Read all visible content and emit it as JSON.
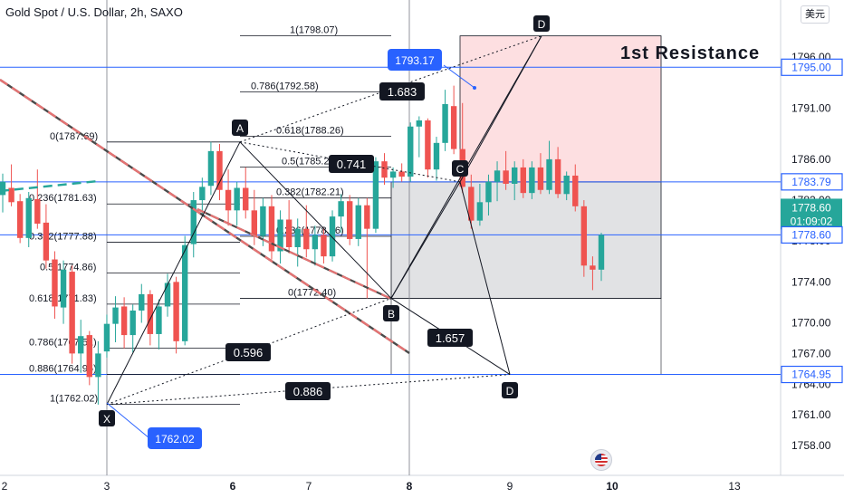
{
  "header": {
    "title": "Gold Spot / U.S. Dollar, 2h, SAXO",
    "currency_button": "美元"
  },
  "annotations": {
    "resistance_label": "1st Resistance",
    "high_callout": "1793.17",
    "low_callout": "1762.02",
    "ratio_boxes": [
      "1.683",
      "0.741",
      "0.596",
      "1.657",
      "0.886"
    ],
    "point_labels": [
      "X",
      "A",
      "B",
      "C",
      "D",
      "D"
    ]
  },
  "fib_levels": [
    {
      "label": "1(1798.07)",
      "price": 1798.07
    },
    {
      "label": "0.786(1792.58)",
      "price": 1792.58
    },
    {
      "label": "0.618(1788.26)",
      "price": 1788.26
    },
    {
      "label": "0.5(1785.24)",
      "price": 1785.24
    },
    {
      "label": "0.382(1782.21)",
      "price": 1782.21
    },
    {
      "label": "0.236(1778.46)",
      "price": 1778.46
    },
    {
      "label": "0(1772.40)",
      "price": 1772.4
    },
    {
      "label": "0(1787.69)",
      "price": 1787.69
    },
    {
      "label": "0.236(1781.63)",
      "price": 1781.63
    },
    {
      "label": "0.382(1777.88)",
      "price": 1777.88
    },
    {
      "label": "0.5(1774.86)",
      "price": 1774.86
    },
    {
      "label": "0.618(1771.83)",
      "price": 1771.83
    },
    {
      "label": "0.786(1767.51)",
      "price": 1767.51
    },
    {
      "label": "0.886(1764.95)",
      "price": 1764.95
    },
    {
      "label": "1(1762.02)",
      "price": 1762.02
    }
  ],
  "price_badges": [
    {
      "text": "1795.00",
      "price": 1795.0,
      "color": "#2962ff",
      "style": "outline"
    },
    {
      "text": "1783.79",
      "price": 1783.79,
      "color": "#2962ff",
      "style": "outline"
    },
    {
      "text": "1778.60",
      "price": 1778.6,
      "color": "#26a69a",
      "style": "filled",
      "sub": "01:09:02"
    },
    {
      "text": "1778.60",
      "price": 1778.6,
      "color": "#2962ff",
      "style": "outline"
    },
    {
      "text": "1764.95",
      "price": 1764.95,
      "color": "#2962ff",
      "style": "outline"
    }
  ],
  "chart_data": {
    "type": "candlestick",
    "title": "Gold Spot / U.S. Dollar, 2h, SAXO",
    "xlabel": "",
    "ylabel": "",
    "y_ticks": [
      1796.0,
      1791.0,
      1786.0,
      1782.0,
      1778.0,
      1774.0,
      1770.0,
      1767.0,
      1764.0,
      1761.0,
      1758.0
    ],
    "x_ticks": [
      "2",
      "3",
      "6",
      "7",
      "8",
      "9",
      "10",
      "13"
    ],
    "last_price": 1778.6,
    "countdown": "01:09:02",
    "harmonic_pattern": {
      "X": 1762.02,
      "A": 1787.69,
      "B": 1772.4,
      "C": 1783.79,
      "D_projected": 1764.95,
      "D_upper": 1798.07,
      "ratios": {
        "XB": 0.596,
        "AC": 0.741,
        "BD": 1.657,
        "XD": 0.886,
        "XA_ext": 1.683
      }
    },
    "candles": [
      {
        "o": 1782.5,
        "h": 1784.6,
        "l": 1780.8,
        "c": 1783.8
      },
      {
        "o": 1783.2,
        "h": 1785.5,
        "l": 1781.4,
        "c": 1781.8
      },
      {
        "o": 1781.9,
        "h": 1782.6,
        "l": 1777.8,
        "c": 1778.3
      },
      {
        "o": 1778.3,
        "h": 1782.8,
        "l": 1777.4,
        "c": 1782.2
      },
      {
        "o": 1782.1,
        "h": 1785.0,
        "l": 1779.2,
        "c": 1779.7
      },
      {
        "o": 1779.8,
        "h": 1781.6,
        "l": 1775.3,
        "c": 1776.1
      },
      {
        "o": 1776.2,
        "h": 1777.0,
        "l": 1770.4,
        "c": 1771.6
      },
      {
        "o": 1771.5,
        "h": 1776.1,
        "l": 1769.9,
        "c": 1775.2
      },
      {
        "o": 1775.0,
        "h": 1775.6,
        "l": 1766.0,
        "c": 1767.0
      },
      {
        "o": 1767.0,
        "h": 1770.3,
        "l": 1765.1,
        "c": 1768.7
      },
      {
        "o": 1768.8,
        "h": 1769.2,
        "l": 1763.9,
        "c": 1764.7
      },
      {
        "o": 1764.7,
        "h": 1768.2,
        "l": 1762.0,
        "c": 1767.0
      },
      {
        "o": 1767.2,
        "h": 1770.8,
        "l": 1766.6,
        "c": 1769.9
      },
      {
        "o": 1769.9,
        "h": 1772.6,
        "l": 1768.1,
        "c": 1771.5
      },
      {
        "o": 1771.6,
        "h": 1772.5,
        "l": 1767.5,
        "c": 1768.8
      },
      {
        "o": 1768.8,
        "h": 1771.8,
        "l": 1767.1,
        "c": 1771.2
      },
      {
        "o": 1771.2,
        "h": 1773.8,
        "l": 1770.0,
        "c": 1772.8
      },
      {
        "o": 1772.8,
        "h": 1773.2,
        "l": 1767.8,
        "c": 1768.9
      },
      {
        "o": 1768.9,
        "h": 1772.3,
        "l": 1767.4,
        "c": 1771.6
      },
      {
        "o": 1771.6,
        "h": 1774.8,
        "l": 1770.6,
        "c": 1773.9
      },
      {
        "o": 1774.0,
        "h": 1774.5,
        "l": 1767.0,
        "c": 1768.2
      },
      {
        "o": 1768.2,
        "h": 1778.5,
        "l": 1767.8,
        "c": 1777.6
      },
      {
        "o": 1777.7,
        "h": 1782.8,
        "l": 1776.4,
        "c": 1782.0
      },
      {
        "o": 1782.0,
        "h": 1784.2,
        "l": 1780.6,
        "c": 1783.3
      },
      {
        "o": 1783.4,
        "h": 1787.7,
        "l": 1782.5,
        "c": 1786.8
      },
      {
        "o": 1786.8,
        "h": 1787.5,
        "l": 1782.0,
        "c": 1783.0
      },
      {
        "o": 1783.0,
        "h": 1785.0,
        "l": 1779.5,
        "c": 1781.0
      },
      {
        "o": 1781.0,
        "h": 1783.8,
        "l": 1779.5,
        "c": 1783.2
      },
      {
        "o": 1783.2,
        "h": 1785.2,
        "l": 1780.2,
        "c": 1781.0
      },
      {
        "o": 1781.0,
        "h": 1783.0,
        "l": 1777.6,
        "c": 1778.5
      },
      {
        "o": 1778.5,
        "h": 1782.2,
        "l": 1777.5,
        "c": 1781.4
      },
      {
        "o": 1781.4,
        "h": 1782.5,
        "l": 1776.2,
        "c": 1777.0
      },
      {
        "o": 1777.0,
        "h": 1781.0,
        "l": 1775.8,
        "c": 1780.1
      },
      {
        "o": 1780.1,
        "h": 1782.0,
        "l": 1776.8,
        "c": 1777.4
      },
      {
        "o": 1777.4,
        "h": 1780.2,
        "l": 1775.5,
        "c": 1779.2
      },
      {
        "o": 1779.2,
        "h": 1781.5,
        "l": 1776.4,
        "c": 1777.2
      },
      {
        "o": 1777.2,
        "h": 1779.5,
        "l": 1775.6,
        "c": 1778.6
      },
      {
        "o": 1778.6,
        "h": 1779.3,
        "l": 1775.8,
        "c": 1776.5
      },
      {
        "o": 1776.5,
        "h": 1781.0,
        "l": 1776.0,
        "c": 1780.4
      },
      {
        "o": 1780.4,
        "h": 1782.6,
        "l": 1778.8,
        "c": 1781.9
      },
      {
        "o": 1781.9,
        "h": 1782.5,
        "l": 1777.6,
        "c": 1778.2
      },
      {
        "o": 1778.2,
        "h": 1782.2,
        "l": 1777.5,
        "c": 1781.5
      },
      {
        "o": 1781.5,
        "h": 1782.2,
        "l": 1772.4,
        "c": 1779.2
      },
      {
        "o": 1779.2,
        "h": 1786.2,
        "l": 1778.8,
        "c": 1785.8
      },
      {
        "o": 1785.8,
        "h": 1786.6,
        "l": 1783.5,
        "c": 1784.2
      },
      {
        "o": 1784.2,
        "h": 1785.2,
        "l": 1783.2,
        "c": 1784.8
      },
      {
        "o": 1784.8,
        "h": 1785.6,
        "l": 1783.8,
        "c": 1784.3
      },
      {
        "o": 1784.3,
        "h": 1789.6,
        "l": 1783.8,
        "c": 1789.2
      },
      {
        "o": 1789.2,
        "h": 1790.2,
        "l": 1786.2,
        "c": 1789.8
      },
      {
        "o": 1789.8,
        "h": 1790.0,
        "l": 1784.2,
        "c": 1785.0
      },
      {
        "o": 1785.0,
        "h": 1788.2,
        "l": 1783.9,
        "c": 1787.6
      },
      {
        "o": 1787.6,
        "h": 1792.8,
        "l": 1786.8,
        "c": 1791.4
      },
      {
        "o": 1791.2,
        "h": 1793.2,
        "l": 1786.5,
        "c": 1787.0
      },
      {
        "o": 1787.0,
        "h": 1791.5,
        "l": 1782.7,
        "c": 1783.3
      },
      {
        "o": 1783.3,
        "h": 1784.5,
        "l": 1779.2,
        "c": 1780.0
      },
      {
        "o": 1780.0,
        "h": 1783.6,
        "l": 1779.5,
        "c": 1781.8
      },
      {
        "o": 1781.8,
        "h": 1784.5,
        "l": 1780.5,
        "c": 1783.8
      },
      {
        "o": 1783.8,
        "h": 1785.8,
        "l": 1781.9,
        "c": 1784.9
      },
      {
        "o": 1784.9,
        "h": 1786.8,
        "l": 1783.0,
        "c": 1783.6
      },
      {
        "o": 1783.6,
        "h": 1785.8,
        "l": 1782.0,
        "c": 1785.2
      },
      {
        "o": 1785.2,
        "h": 1786.0,
        "l": 1782.2,
        "c": 1782.7
      },
      {
        "o": 1782.7,
        "h": 1785.8,
        "l": 1782.1,
        "c": 1785.2
      },
      {
        "o": 1785.2,
        "h": 1786.6,
        "l": 1782.6,
        "c": 1783.0
      },
      {
        "o": 1783.0,
        "h": 1787.8,
        "l": 1782.6,
        "c": 1786.0
      },
      {
        "o": 1786.0,
        "h": 1787.2,
        "l": 1782.2,
        "c": 1782.6
      },
      {
        "o": 1782.6,
        "h": 1784.8,
        "l": 1782.0,
        "c": 1784.4
      },
      {
        "o": 1784.4,
        "h": 1785.5,
        "l": 1780.9,
        "c": 1781.4
      },
      {
        "o": 1781.4,
        "h": 1782.0,
        "l": 1774.5,
        "c": 1775.6
      },
      {
        "o": 1775.6,
        "h": 1776.5,
        "l": 1773.2,
        "c": 1775.2
      },
      {
        "o": 1775.2,
        "h": 1778.8,
        "l": 1774.1,
        "c": 1778.6
      }
    ]
  }
}
